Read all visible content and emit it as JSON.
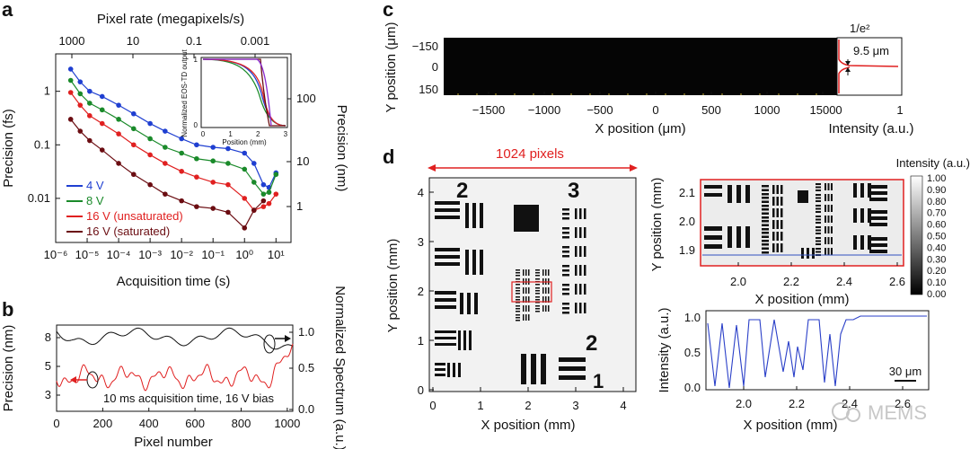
{
  "panel_labels": {
    "a": "a",
    "b": "b",
    "c": "c",
    "d": "d"
  },
  "chart_a": {
    "type": "line",
    "xlabel": "Acquisition time (s)",
    "ylabel_left": "Precision (fs)",
    "ylabel_right": "Precision (nm)",
    "top_xlabel": "Pixel rate (megapixels/s)",
    "x_tick_labels": [
      "10⁻⁶",
      "10⁻⁵",
      "10⁻⁴",
      "10⁻³",
      "10⁻²",
      "10⁻¹",
      "10⁰",
      "10¹"
    ],
    "top_tick_labels": [
      "1000",
      "10",
      "0.1",
      "0.001"
    ],
    "y_tick_labels": [
      "1",
      "0.1",
      "0.01"
    ],
    "right_tick_labels": [
      "100",
      "10",
      "1"
    ],
    "xlim": [
      1e-06,
      30
    ],
    "ylim": [
      0.0015,
      5
    ],
    "xscale": "log",
    "yscale": "log",
    "series": [
      {
        "name": "4 V",
        "color": "#1f3fd1",
        "points": [
          [
            3e-06,
            2.6
          ],
          [
            6e-06,
            1.5
          ],
          [
            1.2e-05,
            1.0
          ],
          [
            3e-05,
            0.8
          ],
          [
            0.0001,
            0.55
          ],
          [
            0.0003,
            0.38
          ],
          [
            0.001,
            0.25
          ],
          [
            0.003,
            0.18
          ],
          [
            0.01,
            0.13
          ],
          [
            0.03,
            0.1
          ],
          [
            0.1,
            0.09
          ],
          [
            0.3,
            0.085
          ],
          [
            1,
            0.07
          ],
          [
            2,
            0.045
          ],
          [
            4,
            0.018
          ],
          [
            6,
            0.016
          ],
          [
            10,
            0.03
          ]
        ]
      },
      {
        "name": "8 V",
        "color": "#1a8a2a",
        "points": [
          [
            3e-06,
            1.6
          ],
          [
            6e-06,
            0.9
          ],
          [
            1.2e-05,
            0.6
          ],
          [
            3e-05,
            0.45
          ],
          [
            0.0001,
            0.3
          ],
          [
            0.0003,
            0.2
          ],
          [
            0.001,
            0.13
          ],
          [
            0.003,
            0.09
          ],
          [
            0.01,
            0.07
          ],
          [
            0.03,
            0.055
          ],
          [
            0.1,
            0.05
          ],
          [
            0.3,
            0.045
          ],
          [
            1,
            0.035
          ],
          [
            2,
            0.02
          ],
          [
            4,
            0.012
          ],
          [
            6,
            0.013
          ],
          [
            10,
            0.028
          ]
        ]
      },
      {
        "name": "16 V (unsaturated)",
        "color": "#e02020",
        "points": [
          [
            3e-06,
            0.95
          ],
          [
            6e-06,
            0.55
          ],
          [
            1.2e-05,
            0.35
          ],
          [
            3e-05,
            0.25
          ],
          [
            0.0001,
            0.16
          ],
          [
            0.0003,
            0.1
          ],
          [
            0.001,
            0.065
          ],
          [
            0.003,
            0.045
          ],
          [
            0.01,
            0.032
          ],
          [
            0.03,
            0.025
          ],
          [
            0.1,
            0.02
          ],
          [
            0.3,
            0.018
          ],
          [
            1,
            0.01
          ],
          [
            2,
            0.006
          ],
          [
            4,
            0.007
          ],
          [
            6,
            0.008
          ],
          [
            10,
            0.012
          ]
        ]
      },
      {
        "name": "16 V (saturated)",
        "color": "#6b0d12",
        "points": [
          [
            3e-06,
            0.3
          ],
          [
            6e-06,
            0.18
          ],
          [
            1.2e-05,
            0.12
          ],
          [
            3e-05,
            0.08
          ],
          [
            0.0001,
            0.045
          ],
          [
            0.0003,
            0.028
          ],
          [
            0.001,
            0.018
          ],
          [
            0.003,
            0.012
          ],
          [
            0.01,
            0.009
          ],
          [
            0.03,
            0.007
          ],
          [
            0.1,
            0.0065
          ],
          [
            0.3,
            0.0055
          ],
          [
            1,
            0.0028
          ],
          [
            2,
            0.006
          ],
          [
            4,
            0.009
          ]
        ]
      }
    ],
    "inset": {
      "ylabel": "Normalized EOS-TD output",
      "xlabel": "Position (mm)",
      "x_tick_labels": [
        "0",
        "1",
        "2",
        "3"
      ],
      "y_tick_labels": [
        "0",
        "1"
      ]
    }
  },
  "chart_b": {
    "type": "line",
    "xlabel": "Pixel number",
    "ylabel_left": "Precision (nm)",
    "ylabel_right": "Normalized Spectrum (a.u.)",
    "x_tick_labels": [
      "0",
      "200",
      "400",
      "600",
      "800",
      "1000"
    ],
    "y_tick_labels": [
      "8",
      "5",
      "3"
    ],
    "right_tick_labels": [
      "1.0",
      "0.5",
      "0.0"
    ],
    "annotation": "10 ms acquisition time, 16 V bias"
  },
  "chart_c": {
    "xlabel": "X position (μm)",
    "ylabel": "Y position (μm)",
    "x_tick_labels": [
      "−1500",
      "−1000",
      "−500",
      "0",
      "500",
      "1000",
      "1500"
    ],
    "y_tick_labels": [
      "−150",
      "0",
      "150"
    ],
    "intensity_label": "Intensity (a.u.)",
    "intensity_ticks": [
      "0",
      "1"
    ],
    "top_label": "1/e²",
    "width_label": "9.5 μm"
  },
  "chart_d": {
    "xlabel": "X position (mm)",
    "ylabel": "Y position (mm)",
    "x_tick_labels": [
      "0",
      "1",
      "2",
      "3",
      "4"
    ],
    "y_tick_labels": [
      "4",
      "3",
      "2",
      "1",
      "0"
    ],
    "span_label": "1024 pixels",
    "zoom_xlabel": "X position (mm)",
    "zoom_ylabel": "Y position (mm)",
    "zoom_x_tick_labels": [
      "2.0",
      "2.2",
      "2.4",
      "2.6"
    ],
    "zoom_y_tick_labels": [
      "2.1",
      "2.0",
      "1.9"
    ],
    "colorbar_label": "Intensity (a.u.)",
    "colorbar_ticks": [
      "1.00",
      "0.90",
      "0.80",
      "0.70",
      "0.60",
      "0.50",
      "0.40",
      "0.30",
      "0.20",
      "0.10",
      "0.00"
    ],
    "profile_ylabel": "Intensity (a.u.)",
    "profile_xlabel": "X position (mm)",
    "profile_x_tick_labels": [
      "2.0",
      "2.2",
      "2.4",
      "2.6"
    ],
    "profile_y_tick_labels": [
      "1.0",
      "0.5",
      "0.0"
    ],
    "scalebar_label": "30 μm"
  },
  "target_numbers": {
    "n2a": "2",
    "n3": "3",
    "n2b": "2",
    "n1": "1"
  },
  "watermark": "MEMS"
}
